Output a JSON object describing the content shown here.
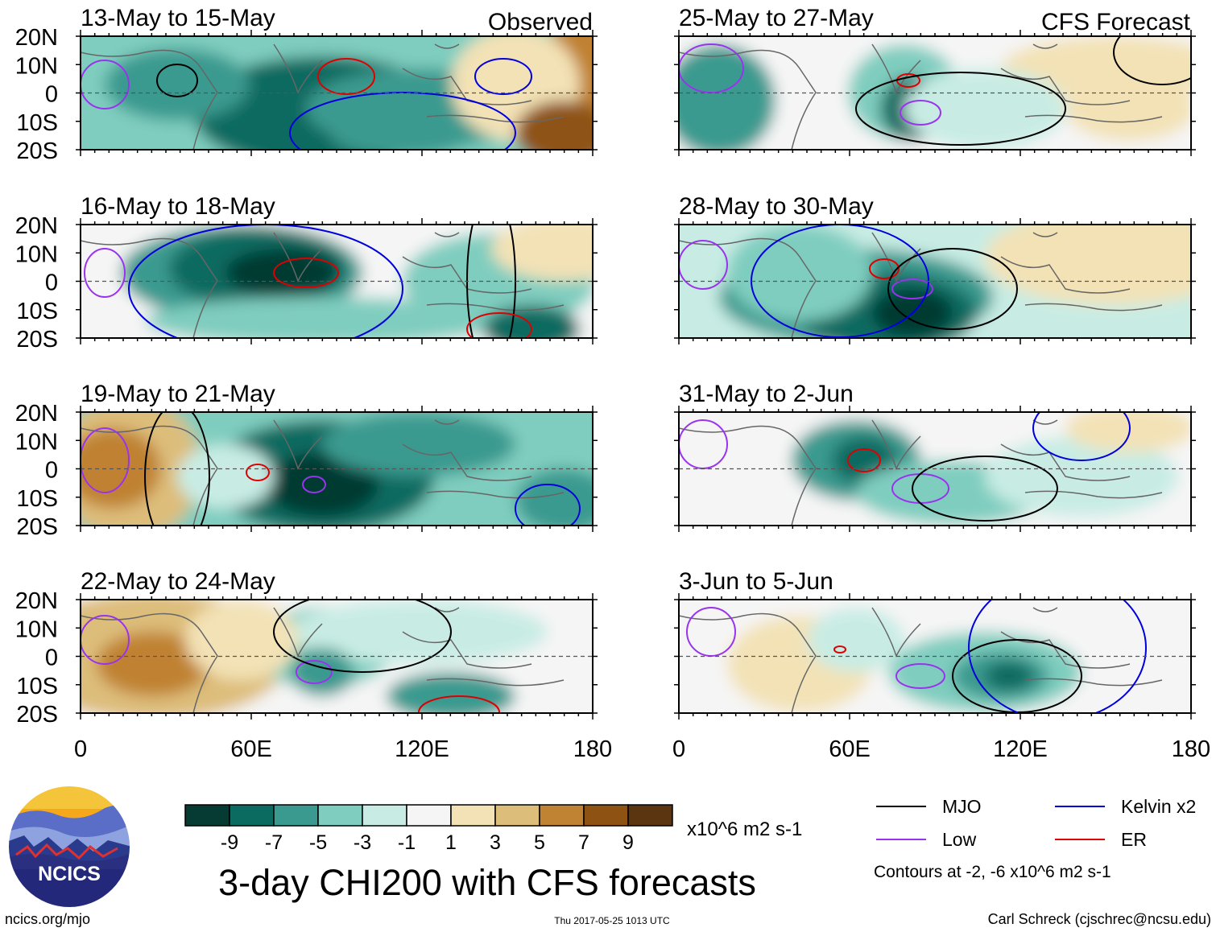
{
  "columns": {
    "left_label": "Observed",
    "right_label": "CFS Forecast"
  },
  "panels": [
    {
      "id": "p1",
      "title": "13-May to 15-May",
      "column": "observed"
    },
    {
      "id": "p2",
      "title": "16-May to 18-May",
      "column": "observed"
    },
    {
      "id": "p3",
      "title": "19-May to 21-May",
      "column": "observed"
    },
    {
      "id": "p4",
      "title": "22-May to 24-May",
      "column": "observed"
    },
    {
      "id": "p5",
      "title": "25-May to 27-May",
      "column": "forecast"
    },
    {
      "id": "p6",
      "title": "28-May to 30-May",
      "column": "forecast"
    },
    {
      "id": "p7",
      "title": "31-May to 2-Jun",
      "column": "forecast"
    },
    {
      "id": "p8",
      "title": "3-Jun to 5-Jun",
      "column": "forecast"
    }
  ],
  "lat_labels": [
    "20N",
    "10N",
    "0",
    "10S",
    "20S"
  ],
  "lon_labels": [
    "0",
    "60E",
    "120E",
    "180"
  ],
  "colorbar": {
    "colors": [
      "#063b33",
      "#0b6b60",
      "#3a9a8f",
      "#7fcdbf",
      "#c8ece4",
      "#f5f5f5",
      "#f3e2b6",
      "#ddbd7a",
      "#c08233",
      "#8e5213",
      "#5a3510"
    ],
    "labels": [
      "-9",
      "-7",
      "-5",
      "-3",
      "-1",
      "1",
      "3",
      "5",
      "7",
      "9"
    ],
    "units": "x10^6 m2 s-1"
  },
  "legend": {
    "items": [
      {
        "label": "MJO",
        "color": "#000000"
      },
      {
        "label": "Kelvin x2",
        "color": "#0000dd"
      },
      {
        "label": "Low",
        "color": "#9933ee"
      },
      {
        "label": "ER",
        "color": "#dd0000"
      }
    ],
    "note": "Contours at -2, -6 x10^6 m2 s-1"
  },
  "title": "3-day CHI200 with CFS forecasts",
  "logo_text": "NCICS",
  "footer": {
    "url": "ncics.org/mjo",
    "timestamp": "Thu 2017-05-25 1013 UTC",
    "author": "Carl Schreck (cjschrec@ncsu.edu)"
  }
}
